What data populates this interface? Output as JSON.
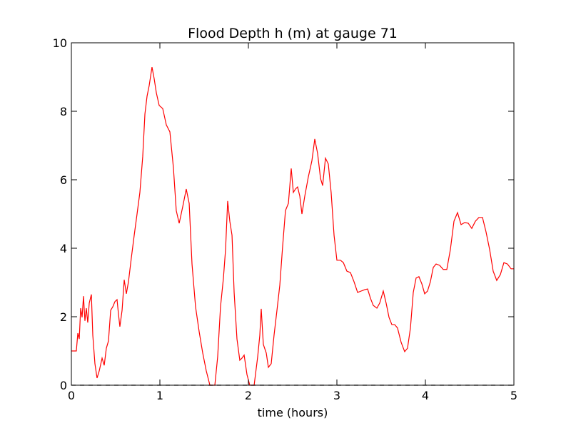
{
  "chart_data": {
    "type": "line",
    "title": "Flood Depth h (m) at gauge 71",
    "xlabel": "time (hours)",
    "xlim": [
      0,
      5
    ],
    "xticks": [
      0,
      1,
      2,
      3,
      4,
      5
    ],
    "ylim": [
      0,
      10
    ],
    "yticks": [
      0,
      2,
      4,
      6,
      8,
      10
    ],
    "series": [
      {
        "color": "#ff0000",
        "linestyle": "solid",
        "x": [
          0,
          0.056,
          0.073,
          0.089,
          0.105,
          0.121,
          0.137,
          0.153,
          0.169,
          0.185,
          0.202,
          0.226,
          0.242,
          0.266,
          0.29,
          0.315,
          0.347,
          0.371,
          0.395,
          0.419,
          0.444,
          0.468,
          0.492,
          0.516,
          0.532,
          0.548,
          0.573,
          0.597,
          0.621,
          0.645,
          0.677,
          0.71,
          0.742,
          0.774,
          0.806,
          0.831,
          0.855,
          0.879,
          0.911,
          0.935,
          0.96,
          0.992,
          1.032,
          1.073,
          1.113,
          1.153,
          1.185,
          1.218,
          1.258,
          1.298,
          1.331,
          1.363,
          1.403,
          1.444,
          1.484,
          1.524,
          1.565,
          1.621,
          1.653,
          1.685,
          1.718,
          1.742,
          1.766,
          1.79,
          1.815,
          1.839,
          1.871,
          1.903,
          1.927,
          1.952,
          1.984,
          2.016,
          2.065,
          2.105,
          2.129,
          2.145,
          2.169,
          2.202,
          2.226,
          2.258,
          2.29,
          2.323,
          2.355,
          2.387,
          2.419,
          2.452,
          2.484,
          2.508,
          2.532,
          2.556,
          2.581,
          2.605,
          2.637,
          2.677,
          2.718,
          2.75,
          2.782,
          2.815,
          2.839,
          2.871,
          2.903,
          2.935,
          2.968,
          3.0,
          3.04,
          3.073,
          3.113,
          3.153,
          3.194,
          3.234,
          3.274,
          3.315,
          3.347,
          3.379,
          3.411,
          3.452,
          3.484,
          3.524,
          3.556,
          3.589,
          3.621,
          3.653,
          3.685,
          3.726,
          3.766,
          3.798,
          3.831,
          3.863,
          3.895,
          3.927,
          3.96,
          3.992,
          4.024,
          4.056,
          4.089,
          4.121,
          4.161,
          4.202,
          4.242,
          4.282,
          4.323,
          4.363,
          4.403,
          4.444,
          4.484,
          4.524,
          4.565,
          4.605,
          4.645,
          4.685,
          4.726,
          4.766,
          4.806,
          4.847,
          4.887,
          4.927,
          4.968,
          5.0
        ],
        "values": [
          1.0,
          1.0,
          1.52,
          1.35,
          2.25,
          1.98,
          2.6,
          1.88,
          2.25,
          1.83,
          2.4,
          2.65,
          1.46,
          0.63,
          0.21,
          0.42,
          0.79,
          0.58,
          1.08,
          1.29,
          2.19,
          2.29,
          2.44,
          2.5,
          2.08,
          1.71,
          2.19,
          3.08,
          2.67,
          3.02,
          3.71,
          4.38,
          5.0,
          5.63,
          6.67,
          7.92,
          8.44,
          8.75,
          9.29,
          8.96,
          8.54,
          8.17,
          8.08,
          7.6,
          7.4,
          6.35,
          5.1,
          4.73,
          5.21,
          5.73,
          5.31,
          3.54,
          2.29,
          1.56,
          0.94,
          0.42,
          0,
          0,
          0.83,
          2.29,
          3.13,
          3.96,
          5.38,
          4.79,
          4.38,
          2.71,
          1.35,
          0.73,
          0.79,
          0.88,
          0.31,
          0,
          0,
          0.83,
          1.46,
          2.23,
          1.19,
          0.94,
          0.52,
          0.63,
          1.46,
          2.19,
          2.92,
          4.06,
          5.1,
          5.31,
          6.33,
          5.63,
          5.73,
          5.79,
          5.52,
          5.0,
          5.52,
          6.08,
          6.56,
          7.19,
          6.77,
          6.04,
          5.83,
          6.63,
          6.46,
          5.63,
          4.38,
          3.65,
          3.65,
          3.58,
          3.33,
          3.29,
          3.02,
          2.71,
          2.75,
          2.79,
          2.81,
          2.54,
          2.33,
          2.25,
          2.4,
          2.75,
          2.4,
          1.98,
          1.77,
          1.77,
          1.67,
          1.25,
          0.98,
          1.08,
          1.67,
          2.71,
          3.13,
          3.17,
          2.96,
          2.67,
          2.75,
          3.02,
          3.44,
          3.54,
          3.5,
          3.38,
          3.38,
          3.96,
          4.79,
          5.04,
          4.69,
          4.75,
          4.73,
          4.58,
          4.79,
          4.9,
          4.9,
          4.48,
          3.96,
          3.33,
          3.06,
          3.23,
          3.58,
          3.54,
          3.4,
          3.4
        ]
      },
      {
        "color": "#000000",
        "linestyle": "dashed",
        "x": [
          0,
          5
        ],
        "values": [
          0,
          0
        ]
      }
    ]
  }
}
